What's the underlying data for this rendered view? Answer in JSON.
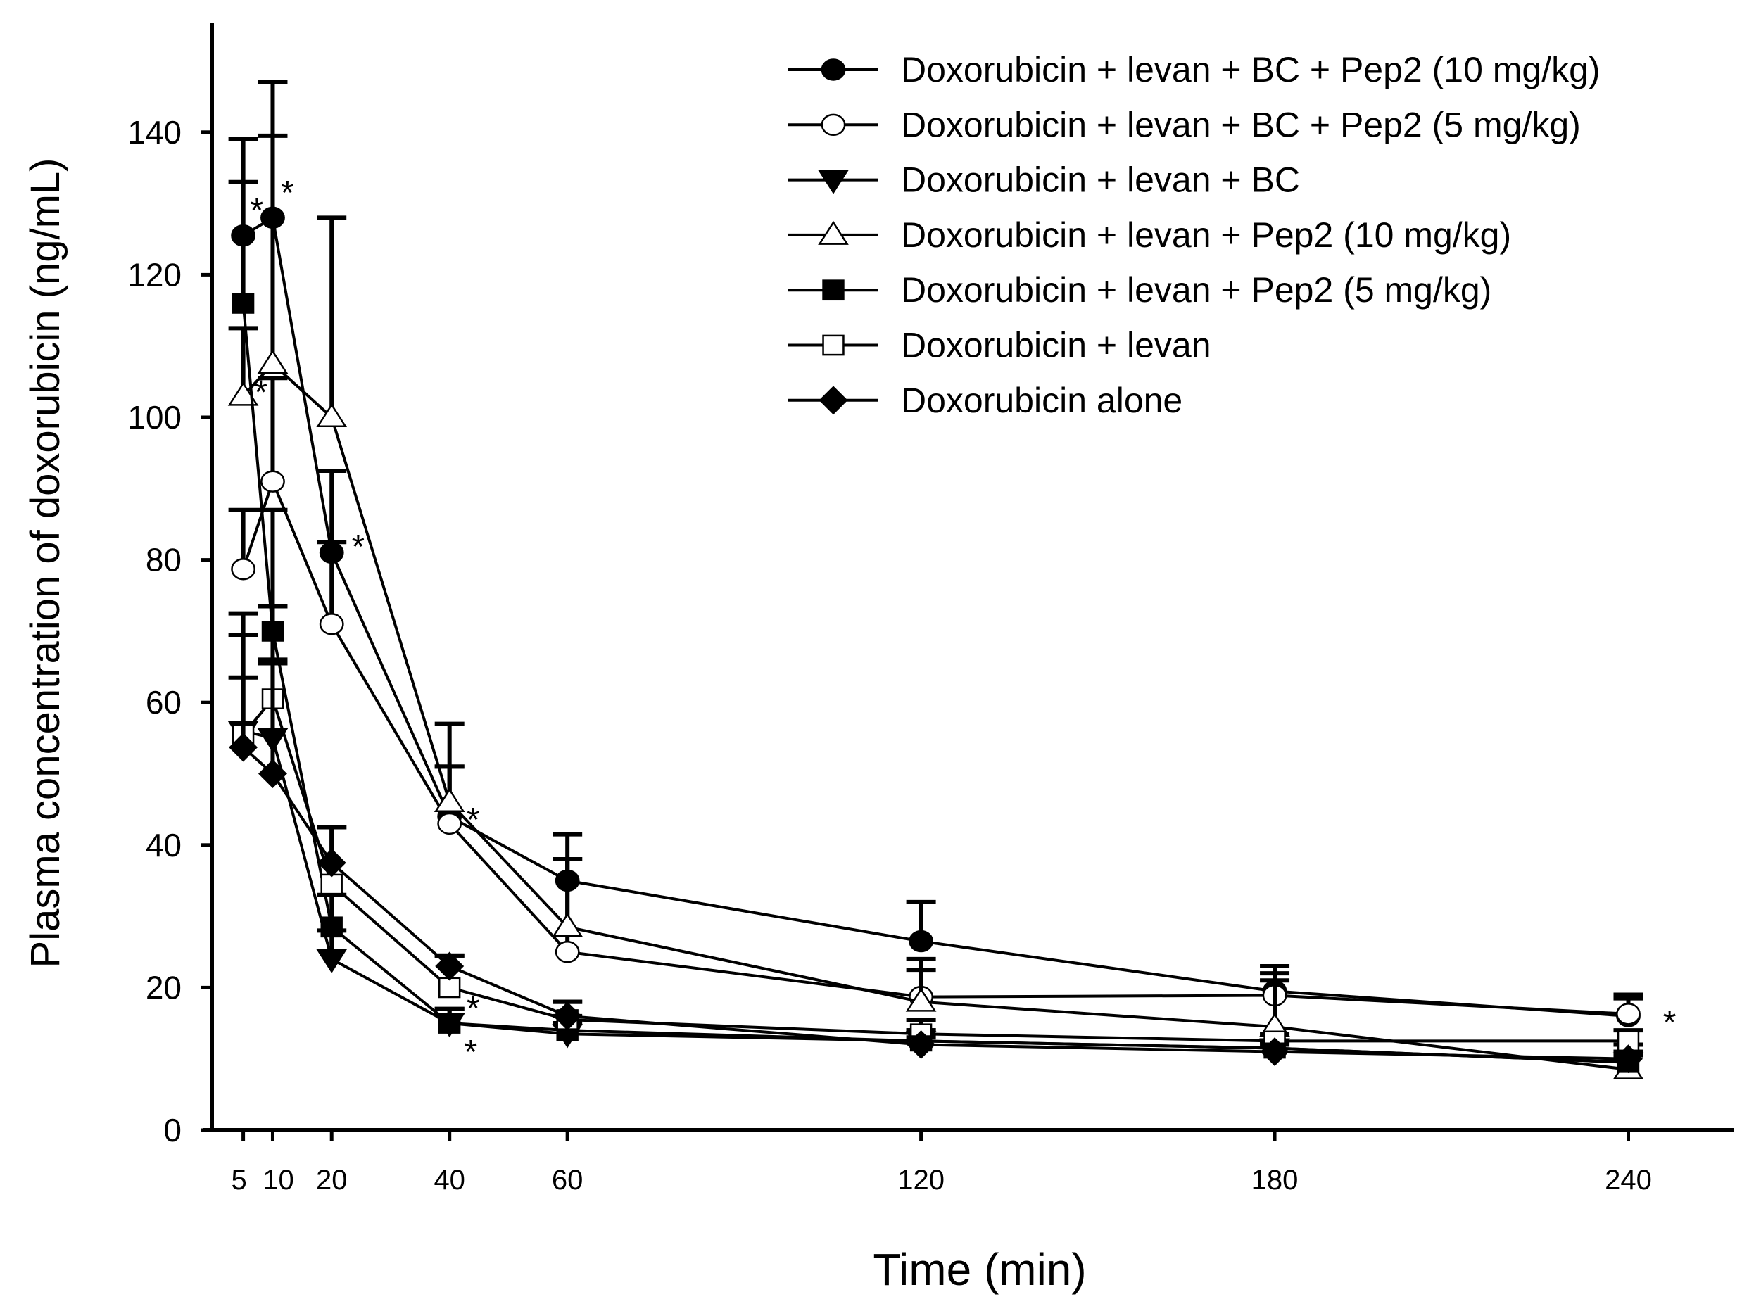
{
  "chart_data": {
    "type": "line",
    "title": "",
    "xlabel": "Time (min)",
    "ylabel": "Plasma concentration of doxorubicin (ng/mL)",
    "xlim": [
      0,
      255
    ],
    "ylim": [
      0,
      150
    ],
    "x": [
      5,
      10,
      20,
      40,
      60,
      120,
      180,
      240
    ],
    "x_ticks": [
      "5",
      "10",
      "20",
      "40",
      "60",
      "120",
      "180",
      "240"
    ],
    "y_ticks": [
      "0",
      "20",
      "40",
      "60",
      "80",
      "100",
      "120",
      "140"
    ],
    "y_tick_values": [
      0,
      20,
      40,
      60,
      80,
      100,
      120,
      140
    ],
    "grid": false,
    "legend_placement": "top-right",
    "series": [
      {
        "name": "Doxorubicin + levan + BC + Pep2 (10 mg/kg)",
        "marker": "circle",
        "fill": "#000000",
        "values": [
          125.5,
          128,
          81,
          44,
          35,
          26.5,
          19.5,
          16
        ],
        "error_upper": [
          139,
          147,
          92.5,
          57,
          41.5,
          32,
          23,
          19
        ]
      },
      {
        "name": "Doxorubicin + levan + BC + Pep2 (5 mg/kg)",
        "marker": "circle",
        "fill": "#ffffff",
        "values": [
          78.7,
          91,
          71,
          43,
          25,
          18.7,
          18.9,
          16.3
        ],
        "error_upper": [
          87,
          105.5,
          82.5,
          51,
          38,
          22.5,
          22,
          18.5
        ]
      },
      {
        "name": "Doxorubicin + levan + BC",
        "marker": "triangle-down",
        "fill": "#000000",
        "values": [
          56,
          55,
          24,
          15,
          13.5,
          12.5,
          11.5,
          9.5
        ],
        "error_upper": [
          63.5,
          66,
          28,
          17,
          15,
          14,
          12.5,
          10.5
        ]
      },
      {
        "name": "Doxorubicin + levan + Pep2 (10 mg/kg)",
        "marker": "triangle-up",
        "fill": "#ffffff",
        "values": [
          103,
          107.5,
          100,
          46,
          28.5,
          18,
          14.5,
          8.5
        ],
        "error_upper": [
          112.5,
          139.5,
          128,
          51,
          38,
          24,
          21,
          12
        ]
      },
      {
        "name": "Doxorubicin + levan + Pep2 (5 mg/kg)",
        "marker": "square",
        "fill": "#000000",
        "values": [
          116,
          70,
          28.5,
          15,
          14,
          12.5,
          11.5,
          9.5
        ],
        "error_upper": [
          133,
          87,
          33,
          17,
          16,
          14,
          12.5,
          11
        ]
      },
      {
        "name": "Doxorubicin + levan",
        "marker": "square",
        "fill": "#ffffff",
        "values": [
          55.5,
          60.5,
          34.5,
          20,
          15.5,
          13.5,
          12.5,
          12.5
        ],
        "error_upper": [
          69.5,
          73.5,
          42.5,
          24.5,
          18,
          15.5,
          13.5,
          14
        ]
      },
      {
        "name": "Doxorubicin alone",
        "marker": "diamond",
        "fill": "#000000",
        "values": [
          53.7,
          50,
          37.5,
          23,
          16,
          12,
          11,
          10
        ],
        "error_upper": [
          72.5,
          65.5,
          42.5,
          24.5,
          18,
          13,
          12,
          11
        ]
      }
    ],
    "annotations": [
      {
        "text": "*",
        "t": 7.3,
        "v": 130
      },
      {
        "text": "*",
        "t": 12.5,
        "v": 132.5
      },
      {
        "text": "*",
        "t": 8,
        "v": 104.5
      },
      {
        "text": "*",
        "t": 24.5,
        "v": 82.8
      },
      {
        "text": "*",
        "t": 44,
        "v": 44.5
      },
      {
        "text": "*",
        "t": 44,
        "v": 16.7
      },
      {
        "text": "*",
        "t": 43.6,
        "v": 13.5
      },
      {
        "text": "*",
        "t": 247,
        "v": 16.1
      }
    ]
  }
}
